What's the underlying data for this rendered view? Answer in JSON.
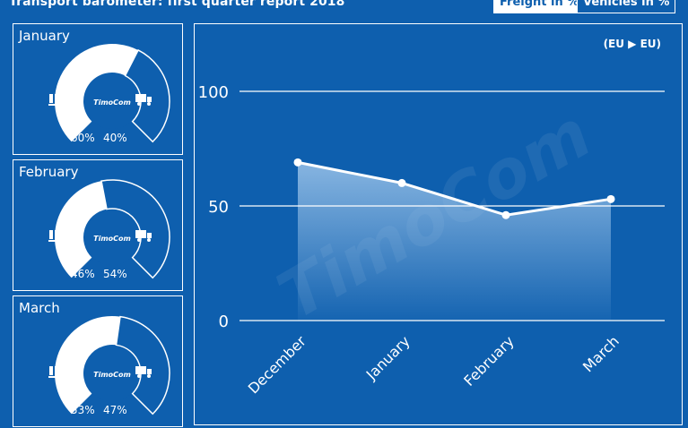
{
  "title": "Transport barometer: first quarter report 2018",
  "toggles": {
    "freight": "Freight in %",
    "vehicles": "Vehicles in %"
  },
  "gauges": [
    {
      "month": "January",
      "freight": 60,
      "vehicles": 40,
      "freight_label": "60%",
      "vehicles_label": "40%",
      "logo": "TimoCom"
    },
    {
      "month": "February",
      "freight": 46,
      "vehicles": 54,
      "freight_label": "46%",
      "vehicles_label": "54%",
      "logo": "TimoCom"
    },
    {
      "month": "March",
      "freight": 53,
      "vehicles": 47,
      "freight_label": "53%",
      "vehicles_label": "47%",
      "logo": "TimoCom"
    }
  ],
  "chart_data": {
    "type": "area",
    "route_label": "(EU ▶ EU)",
    "categories": [
      "December",
      "January",
      "February",
      "March"
    ],
    "values": [
      69,
      60,
      46,
      53
    ],
    "ylim": [
      0,
      100
    ],
    "yticks": [
      0,
      50,
      100
    ],
    "ytick_labels": [
      "0",
      "50",
      "100"
    ],
    "grid": true,
    "watermark": "TimoCom"
  },
  "colors": {
    "background": "#0e5fae",
    "foreground": "#ffffff"
  }
}
